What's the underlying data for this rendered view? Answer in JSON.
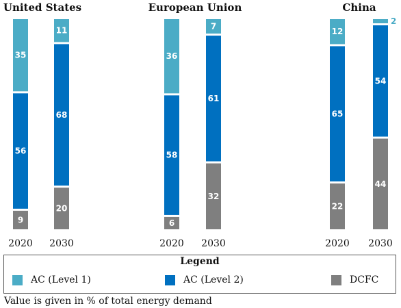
{
  "colors": {
    "AC (Level 1)": "#4bacc6",
    "AC (Level 2)": "#0070c0",
    "DCFC": "#7f7f7f"
  },
  "chart_data": {
    "type": "bar",
    "stacked": true,
    "unit": "% of total energy demand",
    "groups": [
      {
        "region": "United States",
        "bars": [
          {
            "year": "2020",
            "segments": {
              "AC (Level 1)": 35,
              "AC (Level 2)": 56,
              "DCFC": 9
            }
          },
          {
            "year": "2030",
            "segments": {
              "AC (Level 1)": 11,
              "AC (Level 2)": 68,
              "DCFC": 20
            }
          }
        ]
      },
      {
        "region": "European Union",
        "bars": [
          {
            "year": "2020",
            "segments": {
              "AC (Level 1)": 36,
              "AC (Level 2)": 58,
              "DCFC": 6
            }
          },
          {
            "year": "2030",
            "segments": {
              "AC (Level 1)": 7,
              "AC (Level 2)": 61,
              "DCFC": 32
            }
          }
        ]
      },
      {
        "region": "China",
        "bars": [
          {
            "year": "2020",
            "segments": {
              "AC (Level 1)": 12,
              "AC (Level 2)": 65,
              "DCFC": 22
            }
          },
          {
            "year": "2030",
            "segments": {
              "AC (Level 1)": 2,
              "AC (Level 2)": 54,
              "DCFC": 44
            }
          }
        ]
      }
    ],
    "series_order_top_to_bottom": [
      "AC (Level 1)",
      "AC (Level 2)",
      "DCFC"
    ],
    "legend": {
      "title": "Legend",
      "position": "bottom",
      "entries": [
        "AC (Level 1)",
        "AC (Level 2)",
        "DCFC"
      ]
    },
    "grid": false
  },
  "footnote": "Value is given in % of total energy demand"
}
